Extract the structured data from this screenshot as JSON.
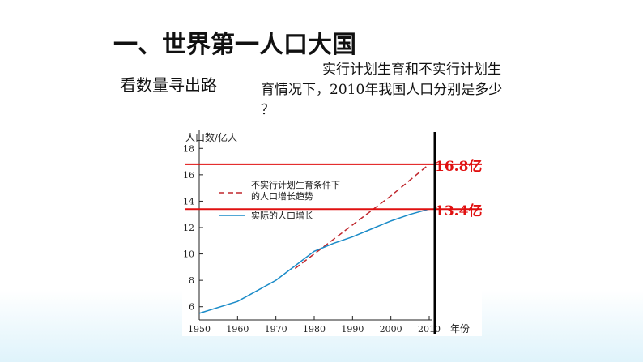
{
  "slide": {
    "title": "一、世界第一人口大国",
    "subtitle": "看数量寻出路",
    "question_line1": "实行计划生育和不实行计划生",
    "question_line2": "育情况下，2010年我国人口分别是多少",
    "question_line3": "？"
  },
  "chart_data": {
    "type": "line",
    "ylabel": "人口数/亿人",
    "xlabel": "年份",
    "xlim": [
      1950,
      2010
    ],
    "ylim": [
      5,
      19
    ],
    "x_ticks": [
      1950,
      1960,
      1970,
      1980,
      1990,
      2000,
      2010
    ],
    "y_ticks": [
      6,
      8,
      10,
      12,
      14,
      16,
      18
    ],
    "series": [
      {
        "name": "不实行计划生育条件下的人口增长趋势",
        "style": "dashed",
        "color": "#c0272d",
        "x": [
          1975,
          1980,
          1990,
          2000,
          2010
        ],
        "y": [
          8.9,
          10.0,
          12.2,
          14.4,
          16.8
        ]
      },
      {
        "name": "实际的人口增长",
        "style": "solid",
        "color": "#1a8bc8",
        "x": [
          1950,
          1960,
          1965,
          1970,
          1975,
          1980,
          1985,
          1990,
          1995,
          2000,
          2005,
          2010
        ],
        "y": [
          5.5,
          6.4,
          7.2,
          8.0,
          9.1,
          10.2,
          10.8,
          11.3,
          11.9,
          12.5,
          13.0,
          13.4
        ]
      }
    ],
    "legend_line1": "不实行计划生育条件下",
    "legend_line2": "的人口增长趋势",
    "legend_actual": "实际的人口增长",
    "annotations": [
      {
        "label": "16.8亿",
        "value": 16.8,
        "color": "#e01010"
      },
      {
        "label": "13.4亿",
        "value": 13.4,
        "color": "#e01010"
      }
    ]
  }
}
